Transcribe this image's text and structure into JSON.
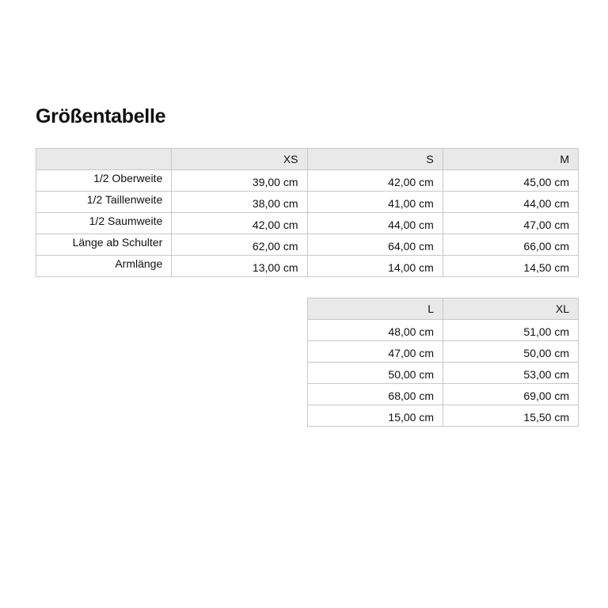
{
  "title": "Größentabelle",
  "row_labels": [
    "1/2 Oberweite",
    "1/2 Taillenweite",
    "1/2 Saumweite",
    "Länge ab Schulter",
    "Armlänge"
  ],
  "table1": {
    "headers": [
      "",
      "XS",
      "S",
      "M"
    ],
    "rows": [
      [
        "39,00 cm",
        "42,00 cm",
        "45,00 cm"
      ],
      [
        "38,00 cm",
        "41,00 cm",
        "44,00 cm"
      ],
      [
        "42,00 cm",
        "44,00 cm",
        "47,00 cm"
      ],
      [
        "62,00 cm",
        "64,00 cm",
        "66,00 cm"
      ],
      [
        "13,00 cm",
        "14,00 cm",
        "14,50 cm"
      ]
    ]
  },
  "table2": {
    "headers": [
      "L",
      "XL"
    ],
    "rows": [
      [
        "48,00 cm",
        "51,00 cm"
      ],
      [
        "47,00 cm",
        "50,00 cm"
      ],
      [
        "50,00 cm",
        "53,00 cm"
      ],
      [
        "68,00 cm",
        "69,00 cm"
      ],
      [
        "15,00 cm",
        "15,50 cm"
      ]
    ]
  }
}
